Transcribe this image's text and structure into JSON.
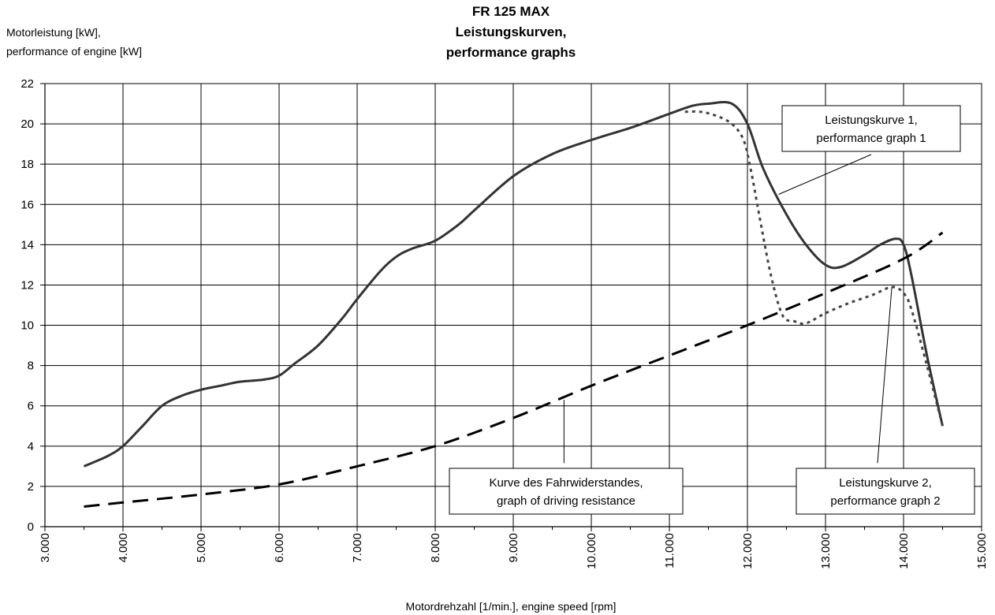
{
  "chart_data": {
    "type": "line",
    "title": [
      "FR 125 MAX",
      "Leistungskurven,",
      "performance graphs"
    ],
    "ylabel": [
      "Motorleistung [kW],",
      "performance of engine [kW]"
    ],
    "xlabel": "Motordrehzahl [1/min.],   engine speed [rpm]",
    "xlim": [
      3000,
      15000
    ],
    "ylim": [
      0,
      22
    ],
    "xticks": [
      3000,
      4000,
      5000,
      6000,
      7000,
      8000,
      9000,
      10000,
      11000,
      12000,
      13000,
      14000,
      15000
    ],
    "xtick_labels": [
      "3.000",
      "4.000",
      "5.000",
      "6.000",
      "7.000",
      "8.000",
      "9.000",
      "10.000",
      "11.000",
      "12.000",
      "13.000",
      "14.000",
      "15.000"
    ],
    "yticks": [
      0,
      2,
      4,
      6,
      8,
      10,
      12,
      14,
      16,
      18,
      20,
      22
    ],
    "ytick_labels": [
      "0",
      "2",
      "4",
      "6",
      "8",
      "10",
      "12",
      "14",
      "16",
      "18",
      "20",
      "22"
    ],
    "grid": true,
    "series": [
      {
        "name": "Leistungskurve 1, performance graph 1",
        "style": "solid",
        "color": "#333333",
        "points": [
          [
            3500,
            3.0
          ],
          [
            3800,
            3.5
          ],
          [
            4000,
            4.0
          ],
          [
            4250,
            5.0
          ],
          [
            4500,
            6.0
          ],
          [
            4750,
            6.5
          ],
          [
            5000,
            6.8
          ],
          [
            5250,
            7.0
          ],
          [
            5500,
            7.2
          ],
          [
            5800,
            7.3
          ],
          [
            6000,
            7.5
          ],
          [
            6200,
            8.1
          ],
          [
            6500,
            9.0
          ],
          [
            6800,
            10.3
          ],
          [
            7000,
            11.3
          ],
          [
            7300,
            12.7
          ],
          [
            7500,
            13.4
          ],
          [
            7700,
            13.8
          ],
          [
            8000,
            14.2
          ],
          [
            8300,
            15.0
          ],
          [
            8500,
            15.7
          ],
          [
            9000,
            17.4
          ],
          [
            9500,
            18.5
          ],
          [
            10000,
            19.2
          ],
          [
            10500,
            19.8
          ],
          [
            11000,
            20.5
          ],
          [
            11300,
            20.9
          ],
          [
            11500,
            21.0
          ],
          [
            11800,
            21.0
          ],
          [
            12000,
            20.0
          ],
          [
            12200,
            17.8
          ],
          [
            12500,
            15.5
          ],
          [
            12750,
            14.0
          ],
          [
            13000,
            13.0
          ],
          [
            13200,
            12.9
          ],
          [
            13500,
            13.5
          ],
          [
            13700,
            14.0
          ],
          [
            13900,
            14.3
          ],
          [
            14000,
            14.0
          ],
          [
            14100,
            12.5
          ],
          [
            14300,
            8.5
          ],
          [
            14500,
            5.0
          ]
        ]
      },
      {
        "name": "Leistungskurve 2, performance graph 2",
        "style": "dotted",
        "color": "#444444",
        "points": [
          [
            11200,
            20.6
          ],
          [
            11400,
            20.6
          ],
          [
            11600,
            20.4
          ],
          [
            11800,
            20.0
          ],
          [
            11950,
            19.2
          ],
          [
            12050,
            17.6
          ],
          [
            12150,
            15.5
          ],
          [
            12300,
            12.5
          ],
          [
            12450,
            10.5
          ],
          [
            12600,
            10.2
          ],
          [
            12750,
            10.1
          ],
          [
            13000,
            10.6
          ],
          [
            13300,
            11.1
          ],
          [
            13600,
            11.5
          ],
          [
            13850,
            11.9
          ],
          [
            14000,
            11.6
          ],
          [
            14100,
            10.8
          ],
          [
            14300,
            8.0
          ],
          [
            14500,
            5.0
          ]
        ]
      },
      {
        "name": "Kurve des Fahrwiderstandes, graph of driving resistance",
        "style": "dashed",
        "color": "#000000",
        "points": [
          [
            3500,
            1.0
          ],
          [
            4000,
            1.2
          ],
          [
            5000,
            1.6
          ],
          [
            6000,
            2.1
          ],
          [
            7000,
            3.0
          ],
          [
            8000,
            4.0
          ],
          [
            9000,
            5.4
          ],
          [
            10000,
            7.0
          ],
          [
            11000,
            8.5
          ],
          [
            12000,
            10.0
          ],
          [
            13000,
            11.6
          ],
          [
            14000,
            13.3
          ],
          [
            14500,
            14.6
          ]
        ]
      }
    ],
    "annotations": [
      {
        "lines": [
          "Leistungskurve 1,",
          "performance graph 1"
        ],
        "box": [
          1180,
          22,
          2.6
        ],
        "pointer_from": [
          2000,
          18
        ],
        "pointer_to": [
          12400,
          16.5
        ]
      },
      {
        "lines": [
          "Kurve des Fahrwiderstandes,",
          "graph of driving resistance"
        ],
        "box": [
          9100,
          4.3,
          3.2
        ],
        "pointer_from": [
          9650,
          3.2
        ],
        "pointer_to": [
          9650,
          6.3
        ]
      },
      {
        "lines": [
          "Leistungskurve 2,",
          "performance graph 2"
        ],
        "box": [
          13200,
          3.0,
          2.6
        ],
        "pointer_from": [
          13750,
          3.0
        ],
        "pointer_to": [
          13850,
          11.9
        ]
      }
    ]
  }
}
